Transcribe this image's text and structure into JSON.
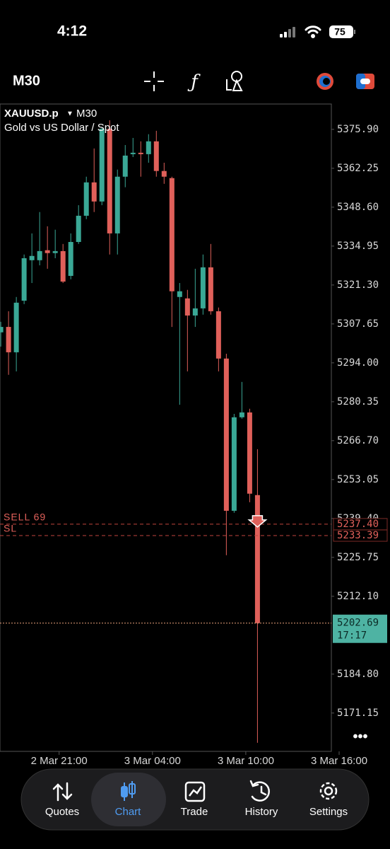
{
  "status_bar": {
    "time": "4:12",
    "battery": "75"
  },
  "toolbar": {
    "timeframe": "M30"
  },
  "chart_data": {
    "type": "candlestick",
    "symbol": "XAUUSD.p",
    "timeframe": "M30",
    "title": "Gold vs US Dollar / Spot",
    "categories": [
      null,
      null,
      null,
      null,
      null,
      null,
      null,
      null,
      null,
      null,
      null,
      null,
      null,
      null,
      null,
      null,
      null,
      null,
      null,
      null,
      null,
      null,
      null,
      null,
      null,
      null,
      null,
      null,
      null,
      null,
      null,
      null,
      null,
      null
    ],
    "open": [
      5304.7,
      5306.6,
      5297.7,
      5315.8,
      5330.0,
      5330.0,
      5333.5,
      5332.5,
      5333.2,
      5324.5,
      5336.4,
      5345.6,
      5357.3,
      5350.6,
      5376.1,
      5339.4,
      5359.3,
      5367.2,
      5367.7,
      5367.2,
      5371.7,
      5361.3,
      5358.8,
      5317.1,
      5316.6,
      5310.6,
      5313.1,
      5327.5,
      5312.1,
      5295.5,
      5242.1,
      5274.9,
      5276.6,
      5247.6
    ],
    "high": [
      5308.4,
      5312.1,
      5317.1,
      5332.0,
      5339.4,
      5346.9,
      5341.9,
      5340.7,
      5335.7,
      5339.4,
      5349.3,
      5359.3,
      5369.2,
      5376.6,
      5379.1,
      5361.8,
      5370.4,
      5372.9,
      5371.7,
      5374.2,
      5375.4,
      5364.2,
      5359.3,
      5322.0,
      5319.6,
      5327.0,
      5332.0,
      5335.7,
      5313.4,
      5297.2,
      5276.1,
      5287.3,
      5277.9,
      5263.7
    ],
    "low": [
      5299.7,
      5289.8,
      5291.0,
      5314.6,
      5322.0,
      5328.2,
      5327.0,
      5330.7,
      5322.0,
      5323.3,
      5335.7,
      5344.4,
      5346.9,
      5349.3,
      5332.0,
      5332.0,
      5355.6,
      5366.2,
      5359.3,
      5364.2,
      5359.3,
      5356.8,
      5306.6,
      5279.3,
      5291.0,
      5306.6,
      5310.9,
      5310.9,
      5291.0,
      5226.5,
      5241.4,
      5274.4,
      5245.1,
      5160.7
    ],
    "close": [
      5306.6,
      5297.7,
      5315.1,
      5330.7,
      5331.5,
      5333.2,
      5332.5,
      5333.2,
      5322.5,
      5336.4,
      5345.6,
      5357.3,
      5350.6,
      5376.1,
      5339.4,
      5359.3,
      5366.7,
      5367.7,
      5367.2,
      5371.7,
      5361.3,
      5359.3,
      5319.1,
      5319.1,
      5310.6,
      5313.1,
      5327.5,
      5312.1,
      5295.5,
      5242.1,
      5274.9,
      5276.6,
      5248.1,
      5202.69
    ],
    "up_color": "#3aa896",
    "down_color": "#e0605a",
    "xlim": [
      -0.1,
      42.5
    ],
    "xticks": [
      {
        "value": 7.5,
        "label": "2 Mar 21:00"
      },
      {
        "value": 19.5,
        "label": "3 Mar 04:00"
      },
      {
        "value": 31.5,
        "label": "3 Mar 10:00"
      },
      {
        "value": 43.5,
        "label": "3 Mar 16:00"
      }
    ],
    "ylim": [
      5157.7,
      5384.8
    ],
    "yticks": [
      {
        "value": 5375.9,
        "label": "5375.90"
      },
      {
        "value": 5362.25,
        "label": "5362.25"
      },
      {
        "value": 5348.6,
        "label": "5348.60"
      },
      {
        "value": 5334.95,
        "label": "5334.95"
      },
      {
        "value": 5321.3,
        "label": "5321.30"
      },
      {
        "value": 5307.65,
        "label": "5307.65"
      },
      {
        "value": 5294,
        "label": "5294.00"
      },
      {
        "value": 5280.35,
        "label": "5280.35"
      },
      {
        "value": 5266.7,
        "label": "5266.70"
      },
      {
        "value": 5253.05,
        "label": "5253.05"
      },
      {
        "value": 5239.4,
        "label": "5239.40"
      },
      {
        "value": 5225.75,
        "label": "5225.75"
      },
      {
        "value": 5212.1,
        "label": "5212.10"
      },
      {
        "value": 5184.8,
        "label": "5184.80"
      },
      {
        "value": 5171.15,
        "label": "5171.15"
      }
    ],
    "levels": [
      {
        "name": "SELL 69",
        "value": 5237.4,
        "value_label": "5237.40"
      },
      {
        "name": "SL",
        "value": 5233.39,
        "value_label": "5233.39"
      }
    ],
    "current_price": 5202.69,
    "countdown": "17:17"
  },
  "nav": [
    "Quotes",
    "Chart",
    "Trade",
    "History",
    "Settings"
  ]
}
